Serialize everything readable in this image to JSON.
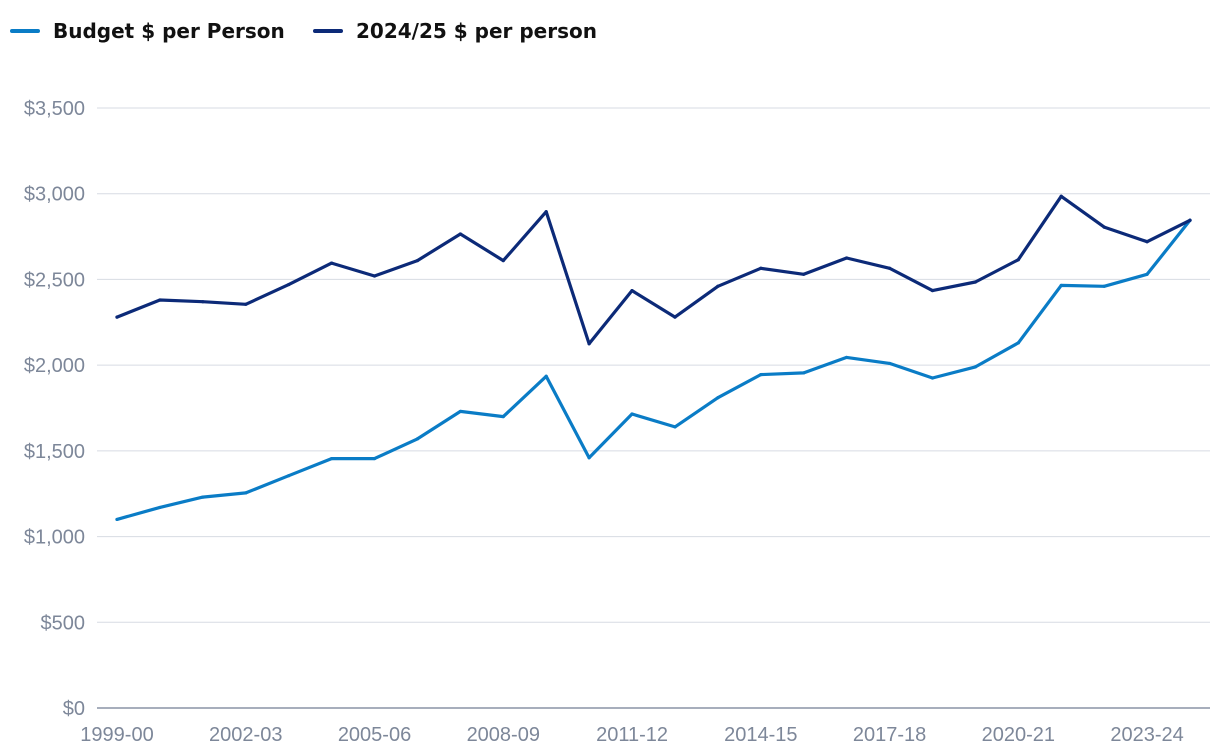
{
  "chart_data": {
    "type": "line",
    "title": "",
    "xlabel": "",
    "ylabel": "",
    "x": [
      "1999-00",
      "2000-01",
      "2001-02",
      "2002-03",
      "2003-04",
      "2004-05",
      "2005-06",
      "2006-07",
      "2007-08",
      "2008-09",
      "2009-10",
      "2010-11",
      "2011-12",
      "2012-13",
      "2013-14",
      "2014-15",
      "2015-16",
      "2016-17",
      "2017-18",
      "2018-19",
      "2019-20",
      "2020-21",
      "2021-22",
      "2022-23",
      "2023-24",
      "2024-25"
    ],
    "x_tick_labels": [
      "1999-00",
      "2002-03",
      "2005-06",
      "2008-09",
      "2011-12",
      "2014-15",
      "2017-18",
      "2020-21",
      "2023-24"
    ],
    "ylim": [
      0,
      3500
    ],
    "y_ticks": [
      0,
      500,
      1000,
      1500,
      2000,
      2500,
      3000,
      3500
    ],
    "y_tick_labels": [
      "$0",
      "$500",
      "$1,000",
      "$1,500",
      "$2,000",
      "$2,500",
      "$3,000",
      "$3,500"
    ],
    "grid": true,
    "legend_position": "top-left",
    "series": [
      {
        "name": "Budget $ per Person",
        "color": "#0a7cc6",
        "values": [
          1100,
          1170,
          1230,
          1255,
          1355,
          1455,
          1455,
          1570,
          1730,
          1700,
          1935,
          1460,
          1715,
          1640,
          1810,
          1945,
          1955,
          2045,
          2010,
          1925,
          1990,
          2130,
          2465,
          2460,
          2530,
          2845
        ]
      },
      {
        "name": "2024/25 $ per person",
        "color": "#0c2a78",
        "values": [
          2280,
          2380,
          2370,
          2355,
          2470,
          2595,
          2520,
          2610,
          2765,
          2610,
          2895,
          2125,
          2435,
          2280,
          2460,
          2565,
          2530,
          2625,
          2565,
          2435,
          2485,
          2615,
          2985,
          2805,
          2720,
          2845
        ]
      }
    ]
  }
}
